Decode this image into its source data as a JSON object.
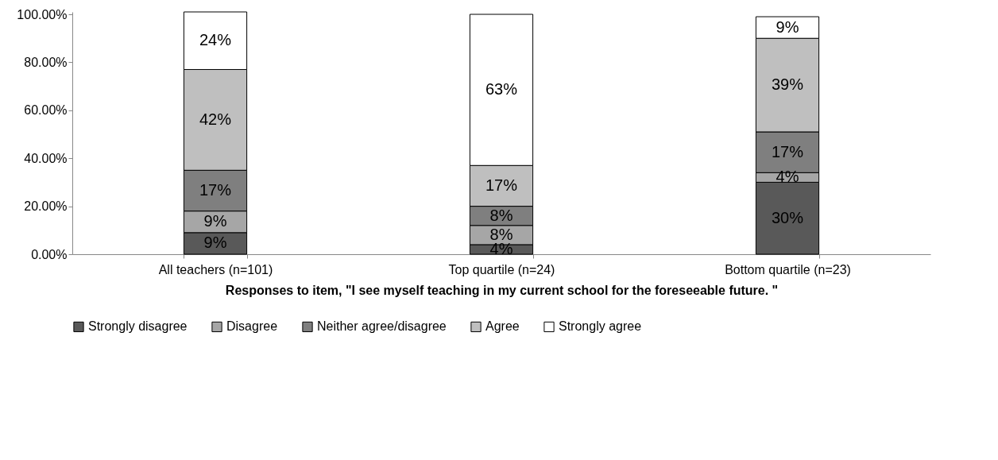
{
  "chart_data": {
    "type": "bar",
    "stacked": true,
    "xlabel": "Responses to item, \"I see myself teaching in my current school for the foreseeable future. \"",
    "categories": [
      "All teachers (n=101)",
      "Top quartile (n=24)",
      "Bottom quartile (n=23)"
    ],
    "series": [
      {
        "name": "Strongly disagree",
        "color": "#595959",
        "values": [
          9,
          4,
          30
        ],
        "value_labels": [
          "9%",
          "4%",
          "30%"
        ]
      },
      {
        "name": "Disagree",
        "color": "#a6a6a6",
        "values": [
          9,
          8,
          4
        ],
        "value_labels": [
          "9%",
          "8%",
          "4%"
        ]
      },
      {
        "name": "Neither agree/disagree",
        "color": "#7f7f7f",
        "values": [
          17,
          8,
          17
        ],
        "value_labels": [
          "17%",
          "8%",
          "17%"
        ]
      },
      {
        "name": "Agree",
        "color": "#bfbfbf",
        "values": [
          42,
          17,
          39
        ],
        "value_labels": [
          "42%",
          "17%",
          "39%"
        ]
      },
      {
        "name": "Strongly agree",
        "color": "#ffffff",
        "values": [
          24,
          63,
          9
        ],
        "value_labels": [
          "24%",
          "63%",
          "9%"
        ]
      }
    ],
    "ylim": [
      0,
      101
    ],
    "yticks": [
      {
        "value": 0,
        "label": "0.00%"
      },
      {
        "value": 20,
        "label": "20.00%"
      },
      {
        "value": 40,
        "label": "40.00%"
      },
      {
        "value": 60,
        "label": "60.00%"
      },
      {
        "value": 80,
        "label": "80.00%"
      },
      {
        "value": 100,
        "label": "100.00%"
      }
    ],
    "grid": false,
    "legend": "bottom"
  }
}
